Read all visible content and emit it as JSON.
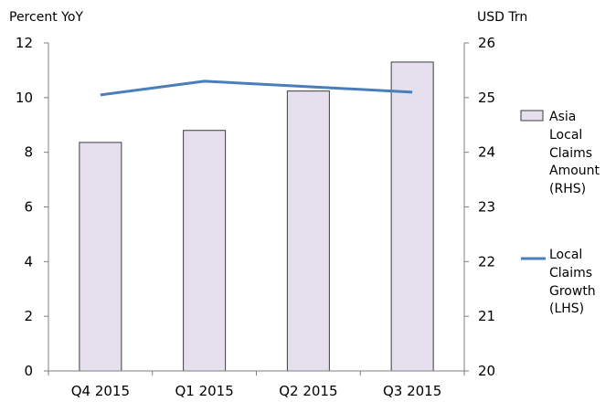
{
  "chart_data": {
    "type": "bar",
    "categories": [
      "Q4 2015",
      "Q1 2015",
      "Q2 2015",
      "Q3 2015"
    ],
    "y_left": {
      "unit_label": "Percent YoY",
      "range": [
        0,
        12
      ],
      "ticks": [
        "0",
        "2",
        "4",
        "6",
        "8",
        "10",
        "12"
      ]
    },
    "y_right": {
      "unit_label": "USD Trn",
      "range": [
        20,
        26
      ],
      "ticks": [
        "20",
        "21",
        "22",
        "23",
        "24",
        "25",
        "26"
      ]
    },
    "series": [
      {
        "name": "Asia Local Claims Amount (RHS)",
        "legend_lines": [
          "Asia",
          "Local",
          "Claims",
          "Amount",
          "(RHS)"
        ],
        "type": "bar",
        "axis": "right",
        "color": "#e6e0ee",
        "edge_color": "#3c3c3c",
        "values": [
          24.18,
          24.4,
          25.12,
          25.65
        ]
      },
      {
        "name": "Local Claims Growth (LHS)",
        "legend_lines": [
          "Local",
          "Claims",
          "Growth",
          "(LHS)"
        ],
        "type": "line",
        "axis": "left",
        "color": "#4a7ebb",
        "values": [
          10.1,
          10.6,
          10.4,
          10.2
        ]
      }
    ],
    "grid": false,
    "legend_position": "right"
  }
}
